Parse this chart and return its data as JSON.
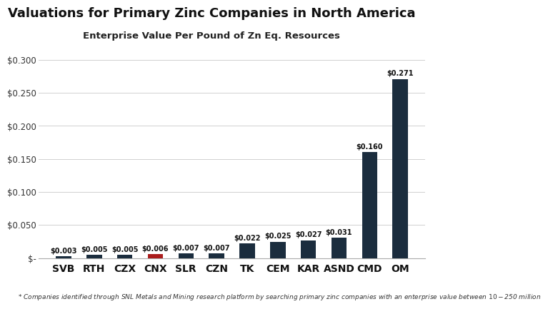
{
  "title": "Valuations for Primary Zinc Companies in North America",
  "subtitle": "Enterprise Value Per Pound of Zn Eq. Resources",
  "footnote": "* Companies identified through SNL Metals and Mining research platform by searching primary zinc companies with an enterprise value between $10-$250 million",
  "categories": [
    "SVB",
    "RTH",
    "CZX",
    "CNX",
    "SLR",
    "CZN",
    "TK",
    "CEM",
    "KAR",
    "ASND",
    "CMD",
    "OM"
  ],
  "values": [
    0.003,
    0.005,
    0.005,
    0.006,
    0.007,
    0.007,
    0.022,
    0.025,
    0.027,
    0.031,
    0.16,
    0.271
  ],
  "labels": [
    "$0.003",
    "$0.005",
    "$0.005",
    "$0.006",
    "$0.007",
    "$0.007",
    "$0.022",
    "$0.025",
    "$0.027",
    "$0.031",
    "$0.160",
    "$0.271"
  ],
  "bar_colors": [
    "#1b2d3e",
    "#1b2d3e",
    "#1b2d3e",
    "#aa1c1c",
    "#1b2d3e",
    "#1b2d3e",
    "#1b2d3e",
    "#1b2d3e",
    "#1b2d3e",
    "#1b2d3e",
    "#1b2d3e",
    "#1b2d3e"
  ],
  "ylim": [
    0,
    0.315
  ],
  "yticks": [
    0,
    0.05,
    0.1,
    0.15,
    0.2,
    0.25,
    0.3
  ],
  "ytick_labels": [
    "$-",
    "$0.050",
    "$0.100",
    "$0.150",
    "$0.200",
    "$0.250",
    "$0.300"
  ],
  "background_color": "#ffffff",
  "title_fontsize": 13,
  "subtitle_fontsize": 9.5,
  "footnote_fontsize": 6.5,
  "bar_label_fontsize": 7,
  "tick_label_fontsize": 8.5,
  "xtick_label_fontsize": 10,
  "bar_width": 0.5,
  "grid_color": "#d0d0d0",
  "spine_color": "#aaaaaa"
}
